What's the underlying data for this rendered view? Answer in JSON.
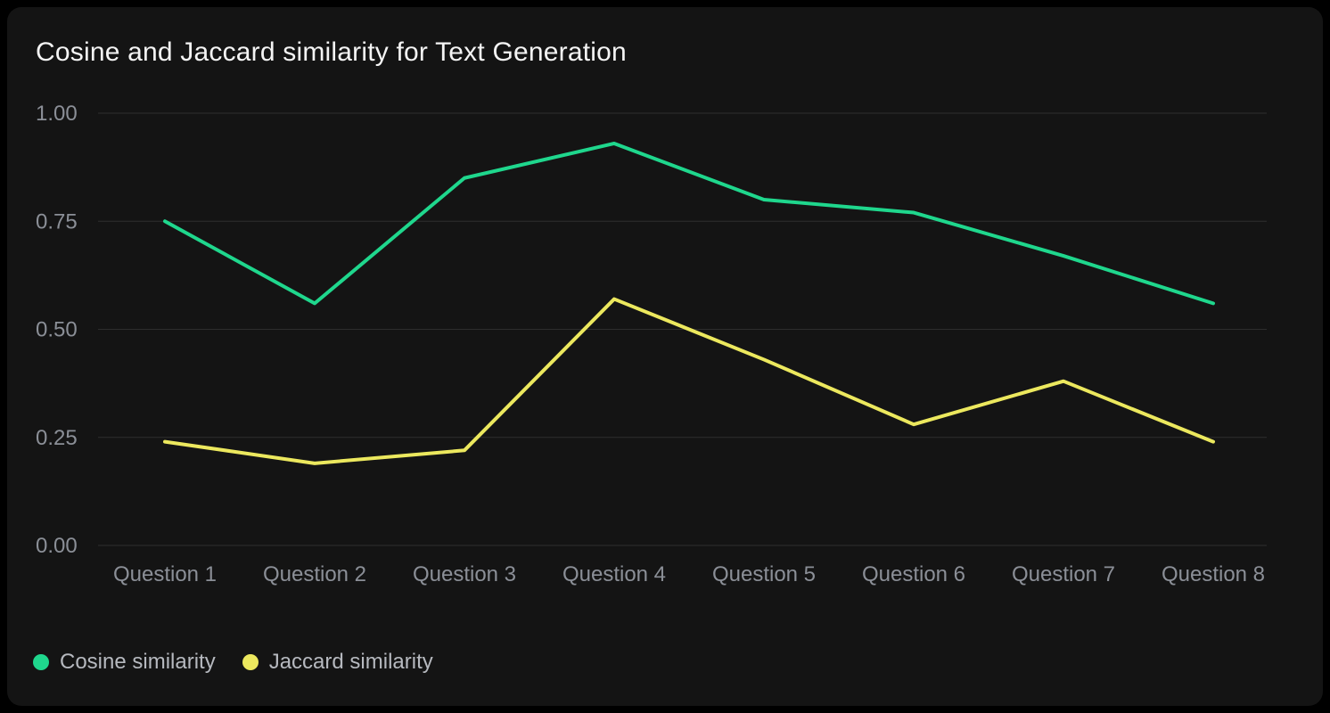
{
  "title": "Cosine and Jaccard similarity for Text Generation",
  "colors": {
    "page_background": "#000000",
    "card_background": "#141414",
    "gridline": "#2e2e2e",
    "title_text": "#f4f4f4",
    "axis_text": "#8b8f97",
    "legend_text": "#b6b9bf",
    "cosine_series": "#1fd78d",
    "jaccard_series": "#ece85e"
  },
  "chart_data": {
    "type": "line",
    "title": "Cosine and Jaccard similarity for Text Generation",
    "categories": [
      "Question 1",
      "Question 2",
      "Question 3",
      "Question 4",
      "Question 5",
      "Question 6",
      "Question 7",
      "Question 8"
    ],
    "series": [
      {
        "name": "Cosine similarity",
        "color": "#1fd78d",
        "values": [
          0.75,
          0.56,
          0.85,
          0.93,
          0.8,
          0.77,
          0.67,
          0.56
        ]
      },
      {
        "name": "Jaccard similarity",
        "color": "#ece85e",
        "values": [
          0.24,
          0.19,
          0.22,
          0.57,
          0.43,
          0.28,
          0.38,
          0.24
        ]
      }
    ],
    "xlabel": "",
    "ylabel": "",
    "ylim": [
      0,
      1
    ],
    "y_ticks": [
      "0.00",
      "0.25",
      "0.50",
      "0.75",
      "1.00"
    ],
    "grid": true,
    "legend_position": "bottom-left"
  }
}
